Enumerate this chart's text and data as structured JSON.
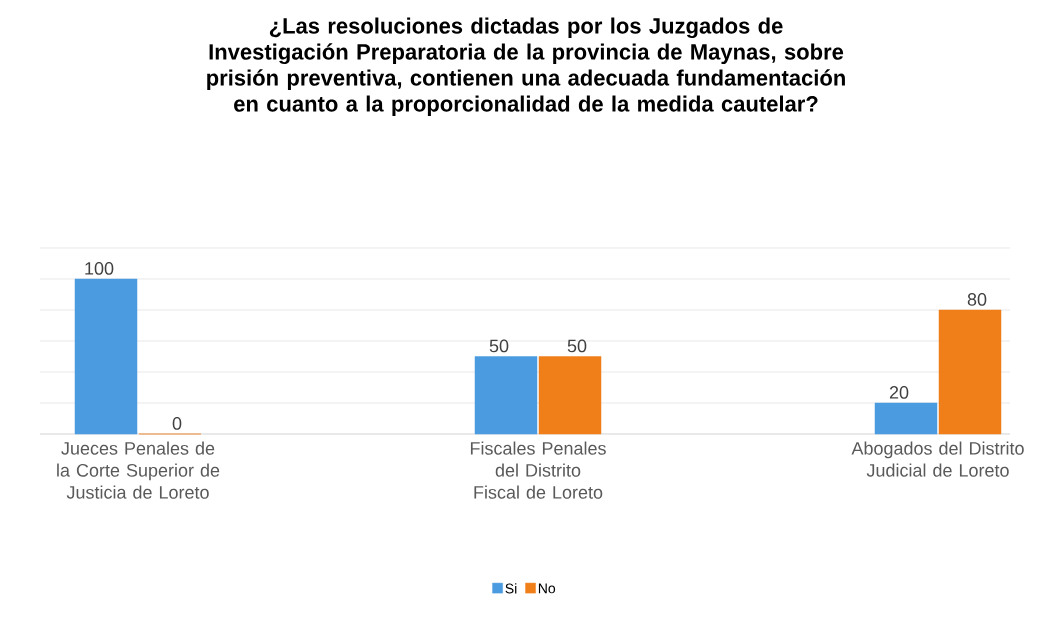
{
  "chart_data": {
    "type": "bar",
    "title": "¿Las resoluciones dictadas por los Juzgados de Investigación Preparatoria de la provincia de Maynas, sobre prisión preventiva, contienen una adecuada fundamentación en cuanto a la proporcionalidad de la medida cautelar?",
    "categories": [
      "Jueces Penales de la Corte Superior de Justicia de Loreto",
      "Fiscales Penales del Distrito Fiscal de Loreto",
      "Abogados del Distrito Judicial de Loreto"
    ],
    "series": [
      {
        "name": "Si",
        "color": "#4a9be0",
        "values": [
          100,
          50,
          20
        ]
      },
      {
        "name": "No",
        "color": "#f07f1a",
        "values": [
          0,
          50,
          80
        ]
      }
    ],
    "ylim": [
      0,
      120
    ],
    "tick_labels": "x",
    "grid": "y",
    "legend": "bottom",
    "data_labels": true
  }
}
